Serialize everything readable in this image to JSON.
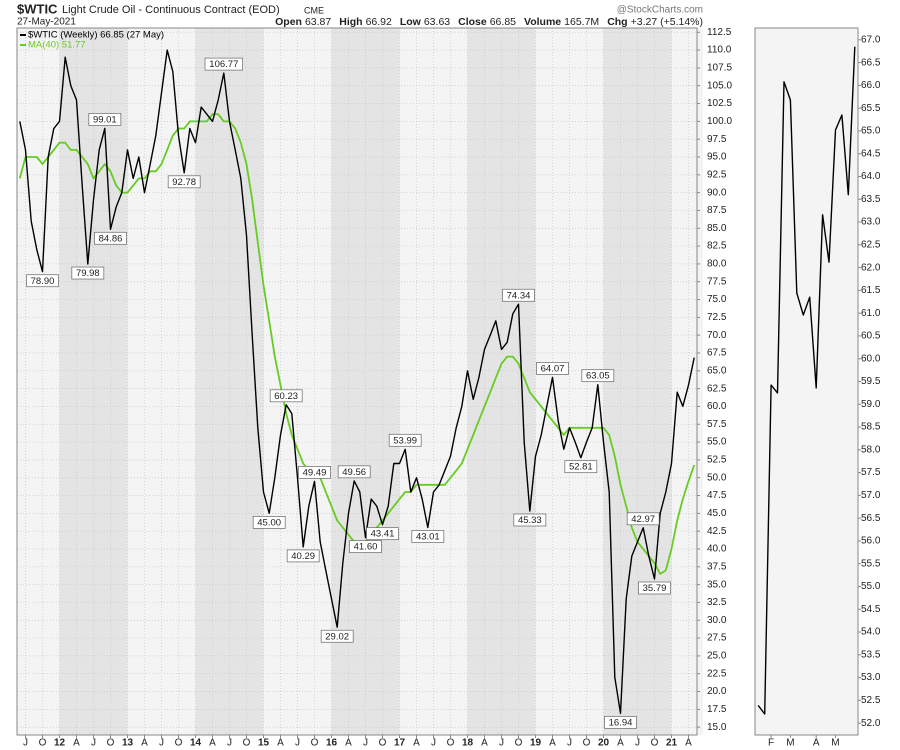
{
  "chart_data": [
    {
      "type": "line",
      "title": "$WTIC",
      "subtitle": "Light Crude Oil - Continuous Contract (EOD)",
      "exchange": "CME",
      "date": "27-May-2021",
      "source": "@StockCharts.com",
      "quote": [
        {
          "label": "Open",
          "value": "63.87"
        },
        {
          "label": "High",
          "value": "66.92"
        },
        {
          "label": "Low",
          "value": "63.63"
        },
        {
          "label": "Close",
          "value": "66.85"
        },
        {
          "label": "Volume",
          "value": "165.7M"
        },
        {
          "label": "Chg",
          "value": "+3.27 (+5.14%)"
        }
      ],
      "categories": [
        null,
        "J",
        null,
        null,
        "O",
        null,
        null,
        "12",
        null,
        null,
        "A",
        null,
        null,
        "J",
        null,
        null,
        "O",
        null,
        null,
        "13",
        null,
        null,
        "A",
        null,
        null,
        "J",
        null,
        null,
        "O",
        null,
        null,
        "14",
        null,
        null,
        "A",
        null,
        null,
        "J",
        null,
        null,
        "O",
        null,
        null,
        "15",
        null,
        null,
        "A",
        null,
        null,
        "J",
        null,
        null,
        "O",
        null,
        null,
        "16",
        null,
        null,
        "A",
        null,
        null,
        "J",
        null,
        null,
        "O",
        null,
        null,
        "17",
        null,
        null,
        "A",
        null,
        null,
        "J",
        null,
        null,
        "O",
        null,
        null,
        "18",
        null,
        null,
        "A",
        null,
        null,
        "J",
        null,
        null,
        "O",
        null,
        null,
        "19",
        null,
        null,
        "A",
        null,
        null,
        "J",
        null,
        null,
        "O",
        null,
        null,
        "20",
        null,
        null,
        "A",
        null,
        null,
        "J",
        null,
        null,
        "O",
        null,
        null,
        "21",
        null,
        null,
        "A",
        null
      ],
      "series": [
        {
          "name": "$WTIC (Weekly) 66.85 (27 May)",
          "color": "#000000",
          "values": [
            100,
            96,
            86,
            82,
            78.9,
            95,
            99,
            100,
            109,
            105,
            103,
            91,
            79.98,
            89,
            96,
            99.01,
            84.86,
            88,
            90,
            96,
            92,
            95,
            90,
            94,
            98,
            104,
            110,
            107,
            98,
            92.78,
            99,
            97,
            102,
            101,
            100,
            103,
            106.77,
            100,
            96,
            92,
            84,
            70,
            57,
            48,
            45,
            50,
            56,
            60.23,
            59,
            50,
            40.29,
            46,
            49.49,
            41,
            37,
            33,
            29.02,
            38,
            45,
            49.56,
            48,
            41.6,
            47,
            46,
            43.41,
            46,
            52,
            52,
            53.99,
            48,
            50,
            47,
            43.01,
            48,
            49,
            51,
            53,
            57,
            60,
            65,
            61,
            64,
            68,
            70,
            72,
            68,
            69,
            73,
            74.34,
            55,
            45.33,
            53,
            56,
            60,
            64.07,
            58,
            54,
            57,
            55,
            52.81,
            55,
            57,
            63.05,
            55,
            48,
            22,
            16.94,
            33,
            39,
            41,
            42.97,
            39,
            35.79,
            45,
            48,
            52,
            62,
            60,
            63,
            66.85
          ],
          "value_labels": [
            null,
            null,
            null,
            null,
            "78.90",
            null,
            null,
            null,
            null,
            null,
            null,
            null,
            "79.98",
            null,
            null,
            "99.01",
            "84.86",
            null,
            null,
            null,
            null,
            null,
            null,
            null,
            null,
            null,
            null,
            null,
            null,
            "92.78",
            null,
            null,
            null,
            null,
            null,
            null,
            "106.77",
            null,
            null,
            null,
            null,
            null,
            null,
            null,
            "45.00",
            null,
            null,
            "60.23",
            null,
            null,
            "40.29",
            null,
            "49.49",
            null,
            null,
            null,
            "29.02",
            null,
            null,
            "49.56",
            null,
            "41.60",
            null,
            null,
            "43.41",
            null,
            null,
            null,
            "53.99",
            null,
            null,
            null,
            "43.01",
            null,
            null,
            null,
            null,
            null,
            null,
            null,
            null,
            null,
            null,
            null,
            null,
            null,
            null,
            null,
            "74.34",
            null,
            "45.33",
            null,
            null,
            null,
            "64.07",
            null,
            null,
            null,
            null,
            "52.81",
            null,
            null,
            "63.05",
            null,
            null,
            null,
            "16.94",
            null,
            null,
            null,
            "42.97",
            null,
            "35.79",
            null,
            null,
            null,
            null,
            null,
            null,
            null
          ]
        },
        {
          "name": "MA(40) 51.77",
          "color": "#66cc22",
          "values": [
            92,
            95,
            95,
            95,
            94,
            95,
            96,
            97,
            97,
            96,
            96,
            95,
            94,
            92,
            93,
            94,
            93,
            91,
            90,
            90,
            91,
            92,
            92,
            93,
            93,
            94,
            96,
            98,
            99,
            99,
            100,
            100,
            100,
            100,
            101,
            101,
            100,
            100,
            99,
            97,
            94,
            89,
            83,
            77,
            72,
            67,
            63,
            59,
            56,
            54,
            52,
            51,
            51,
            50,
            48,
            46,
            44,
            43,
            42,
            41,
            41,
            41,
            42,
            43,
            44,
            45,
            46,
            47,
            48,
            48,
            49,
            49,
            49,
            49,
            49,
            49,
            50,
            51,
            52,
            54,
            56,
            58,
            60,
            62,
            64,
            66,
            67,
            67,
            66,
            64,
            62,
            61,
            60,
            59,
            58,
            57,
            56,
            57,
            57,
            57,
            57,
            57,
            57,
            57,
            56,
            53,
            49,
            46,
            43,
            41,
            40,
            39,
            38,
            36.5,
            37,
            40,
            44,
            47,
            49.5,
            51.77
          ]
        }
      ],
      "ylim": [
        13.9,
        113.1
      ],
      "yticks": [
        {
          "value": 15,
          "label": "15.0"
        },
        {
          "value": 17.5,
          "label": "17.5"
        },
        {
          "value": 20,
          "label": "20.0"
        },
        {
          "value": 22.5,
          "label": "22.5"
        },
        {
          "value": 25,
          "label": "25.0"
        },
        {
          "value": 27.5,
          "label": "27.5"
        },
        {
          "value": 30,
          "label": "30.0"
        },
        {
          "value": 32.5,
          "label": "32.5"
        },
        {
          "value": 35,
          "label": "35.0"
        },
        {
          "value": 37.5,
          "label": "37.5"
        },
        {
          "value": 40,
          "label": "40.0"
        },
        {
          "value": 42.5,
          "label": "42.5"
        },
        {
          "value": 45,
          "label": "45.0"
        },
        {
          "value": 47.5,
          "label": "47.5"
        },
        {
          "value": 50,
          "label": "50.0"
        },
        {
          "value": 52.5,
          "label": "52.5"
        },
        {
          "value": 55,
          "label": "55.0"
        },
        {
          "value": 57.5,
          "label": "57.5"
        },
        {
          "value": 60,
          "label": "60.0"
        },
        {
          "value": 62.5,
          "label": "62.5"
        },
        {
          "value": 65,
          "label": "65.0"
        },
        {
          "value": 67.5,
          "label": "67.5"
        },
        {
          "value": 70,
          "label": "70.0"
        },
        {
          "value": 72.5,
          "label": "72.5"
        },
        {
          "value": 75,
          "label": "75.0"
        },
        {
          "value": 77.5,
          "label": "77.5"
        },
        {
          "value": 80,
          "label": "80.0"
        },
        {
          "value": 82.5,
          "label": "82.5"
        },
        {
          "value": 85,
          "label": "85.0"
        },
        {
          "value": 87.5,
          "label": "87.5"
        },
        {
          "value": 90,
          "label": "90.0"
        },
        {
          "value": 92.5,
          "label": "92.5"
        },
        {
          "value": 95,
          "label": "95.0"
        },
        {
          "value": 97.5,
          "label": "97.5"
        },
        {
          "value": 100,
          "label": "100.0"
        },
        {
          "value": 102.5,
          "label": "102.5"
        },
        {
          "value": 105,
          "label": "105.0"
        },
        {
          "value": 107.5,
          "label": "107.5"
        },
        {
          "value": 110,
          "label": "110.0"
        },
        {
          "value": 112.5,
          "label": "112.5"
        }
      ],
      "grid": true,
      "legend": "upper left"
    },
    {
      "type": "line",
      "color": "#000000",
      "categories": [
        null,
        null,
        "F",
        null,
        null,
        "M",
        null,
        null,
        null,
        "A",
        null,
        null,
        "M",
        null,
        null,
        null
      ],
      "values": [
        52.39,
        52.2,
        59.42,
        59.25,
        66.08,
        65.68,
        61.44,
        60.96,
        61.35,
        59.36,
        63.16,
        62.12,
        65.02,
        65.35,
        63.6,
        66.85
      ],
      "ylim": [
        51.74,
        67.26
      ],
      "yticks": [
        {
          "value": 52,
          "label": "52.0"
        },
        {
          "value": 52.5,
          "label": "52.5"
        },
        {
          "value": 53,
          "label": "53.0"
        },
        {
          "value": 53.5,
          "label": "53.5"
        },
        {
          "value": 54,
          "label": "54.0"
        },
        {
          "value": 54.5,
          "label": "54.5"
        },
        {
          "value": 55,
          "label": "55.0"
        },
        {
          "value": 55.5,
          "label": "55.5"
        },
        {
          "value": 56,
          "label": "56.0"
        },
        {
          "value": 56.5,
          "label": "56.5"
        },
        {
          "value": 57,
          "label": "57.0"
        },
        {
          "value": 57.5,
          "label": "57.5"
        },
        {
          "value": 58,
          "label": "58.0"
        },
        {
          "value": 58.5,
          "label": "58.5"
        },
        {
          "value": 59,
          "label": "59.0"
        },
        {
          "value": 59.5,
          "label": "59.5"
        },
        {
          "value": 60,
          "label": "60.0"
        },
        {
          "value": 60.5,
          "label": "60.5"
        },
        {
          "value": 61,
          "label": "61.0"
        },
        {
          "value": 61.5,
          "label": "61.5"
        },
        {
          "value": 62,
          "label": "62.0"
        },
        {
          "value": 62.5,
          "label": "62.5"
        },
        {
          "value": 63,
          "label": "63.0"
        },
        {
          "value": 63.5,
          "label": "63.5"
        },
        {
          "value": 64,
          "label": "64.0"
        },
        {
          "value": 64.5,
          "label": "64.5"
        },
        {
          "value": 65,
          "label": "65.0"
        },
        {
          "value": 65.5,
          "label": "65.5"
        },
        {
          "value": 66,
          "label": "66.0"
        },
        {
          "value": 66.5,
          "label": "66.5"
        },
        {
          "value": 67,
          "label": "67.0"
        }
      ],
      "grid": false
    }
  ]
}
